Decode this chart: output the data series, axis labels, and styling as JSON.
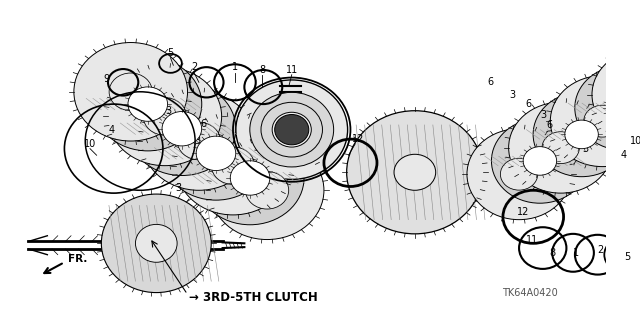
{
  "bg_color": "#ffffff",
  "line_color": "#000000",
  "bottom_label": "3RD-5TH CLUTCH",
  "part_code": "TK64A0420",
  "figsize": [
    6.4,
    3.19
  ],
  "dpi": 100
}
